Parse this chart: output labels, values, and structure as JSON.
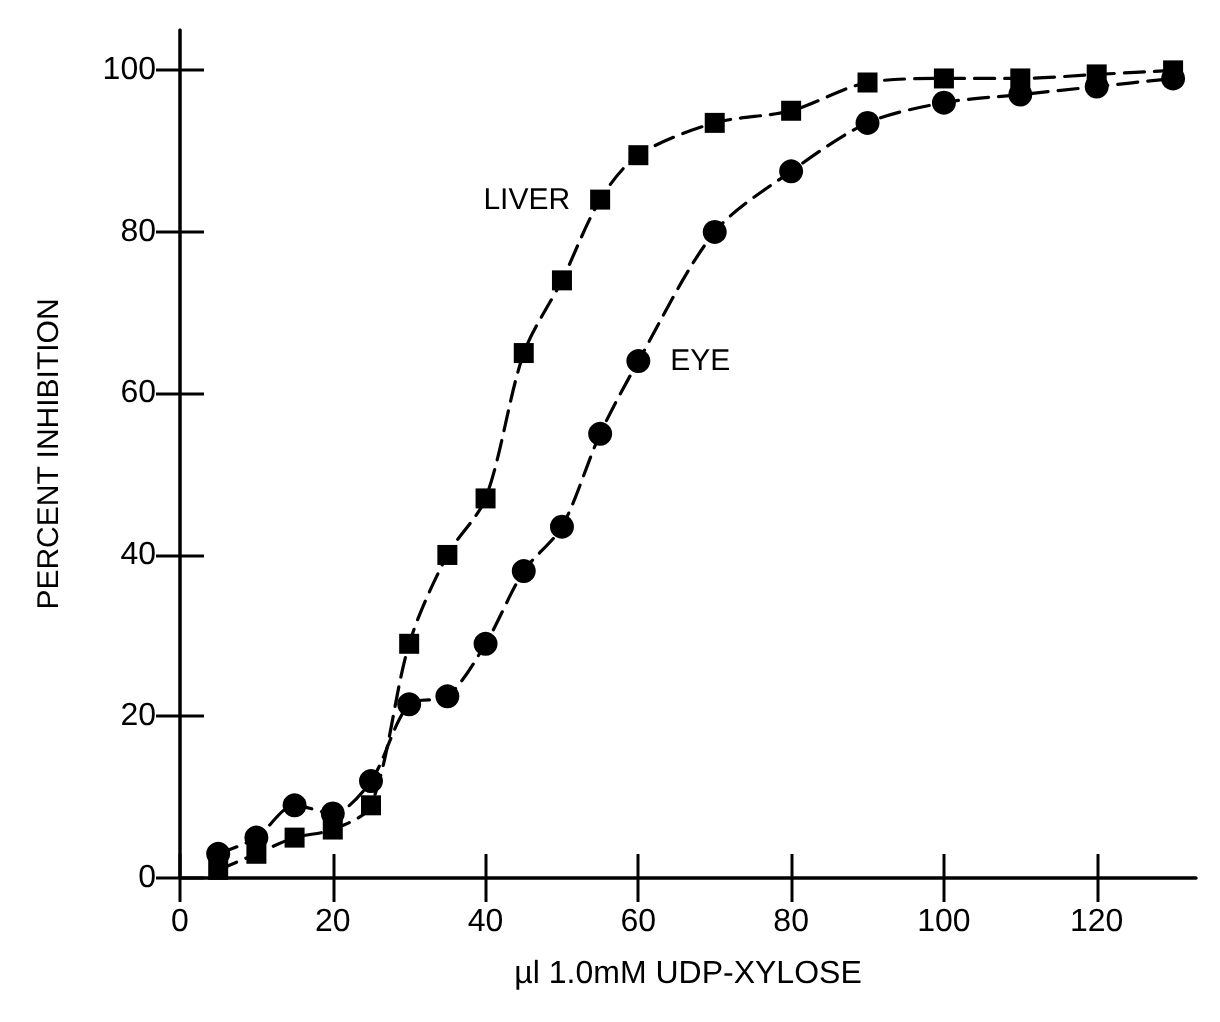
{
  "chart_data": {
    "type": "line",
    "xlabel": "µl 1.0mM UDP-XYLOSE",
    "ylabel": "PERCENT INHIBITION",
    "x": [
      5,
      10,
      15,
      20,
      25,
      30,
      35,
      40,
      45,
      50,
      55,
      60,
      70,
      80,
      90,
      100,
      110,
      120,
      130
    ],
    "series": [
      {
        "name": "LIVER",
        "color": "#000000",
        "marker": "square",
        "values": [
          1,
          3,
          5,
          6,
          9,
          29,
          40,
          47,
          65,
          74,
          84,
          89.5,
          93.5,
          95,
          98.5,
          99,
          99,
          99.5,
          100
        ]
      },
      {
        "name": "EYE",
        "color": "#000000",
        "marker": "circle",
        "values": [
          3,
          5,
          9,
          8,
          12,
          21.5,
          22.5,
          29,
          38,
          43.5,
          55,
          64,
          80,
          87.5,
          93.5,
          96,
          97,
          98,
          99
        ]
      }
    ],
    "xlim": [
      0,
      133
    ],
    "xticks": [
      0,
      20,
      40,
      60,
      80,
      100,
      120
    ],
    "ylim": [
      0,
      105
    ],
    "yticks": [
      0,
      20,
      40,
      60,
      80,
      100
    ],
    "line_style": "dashed",
    "grid": false,
    "legend": false
  }
}
